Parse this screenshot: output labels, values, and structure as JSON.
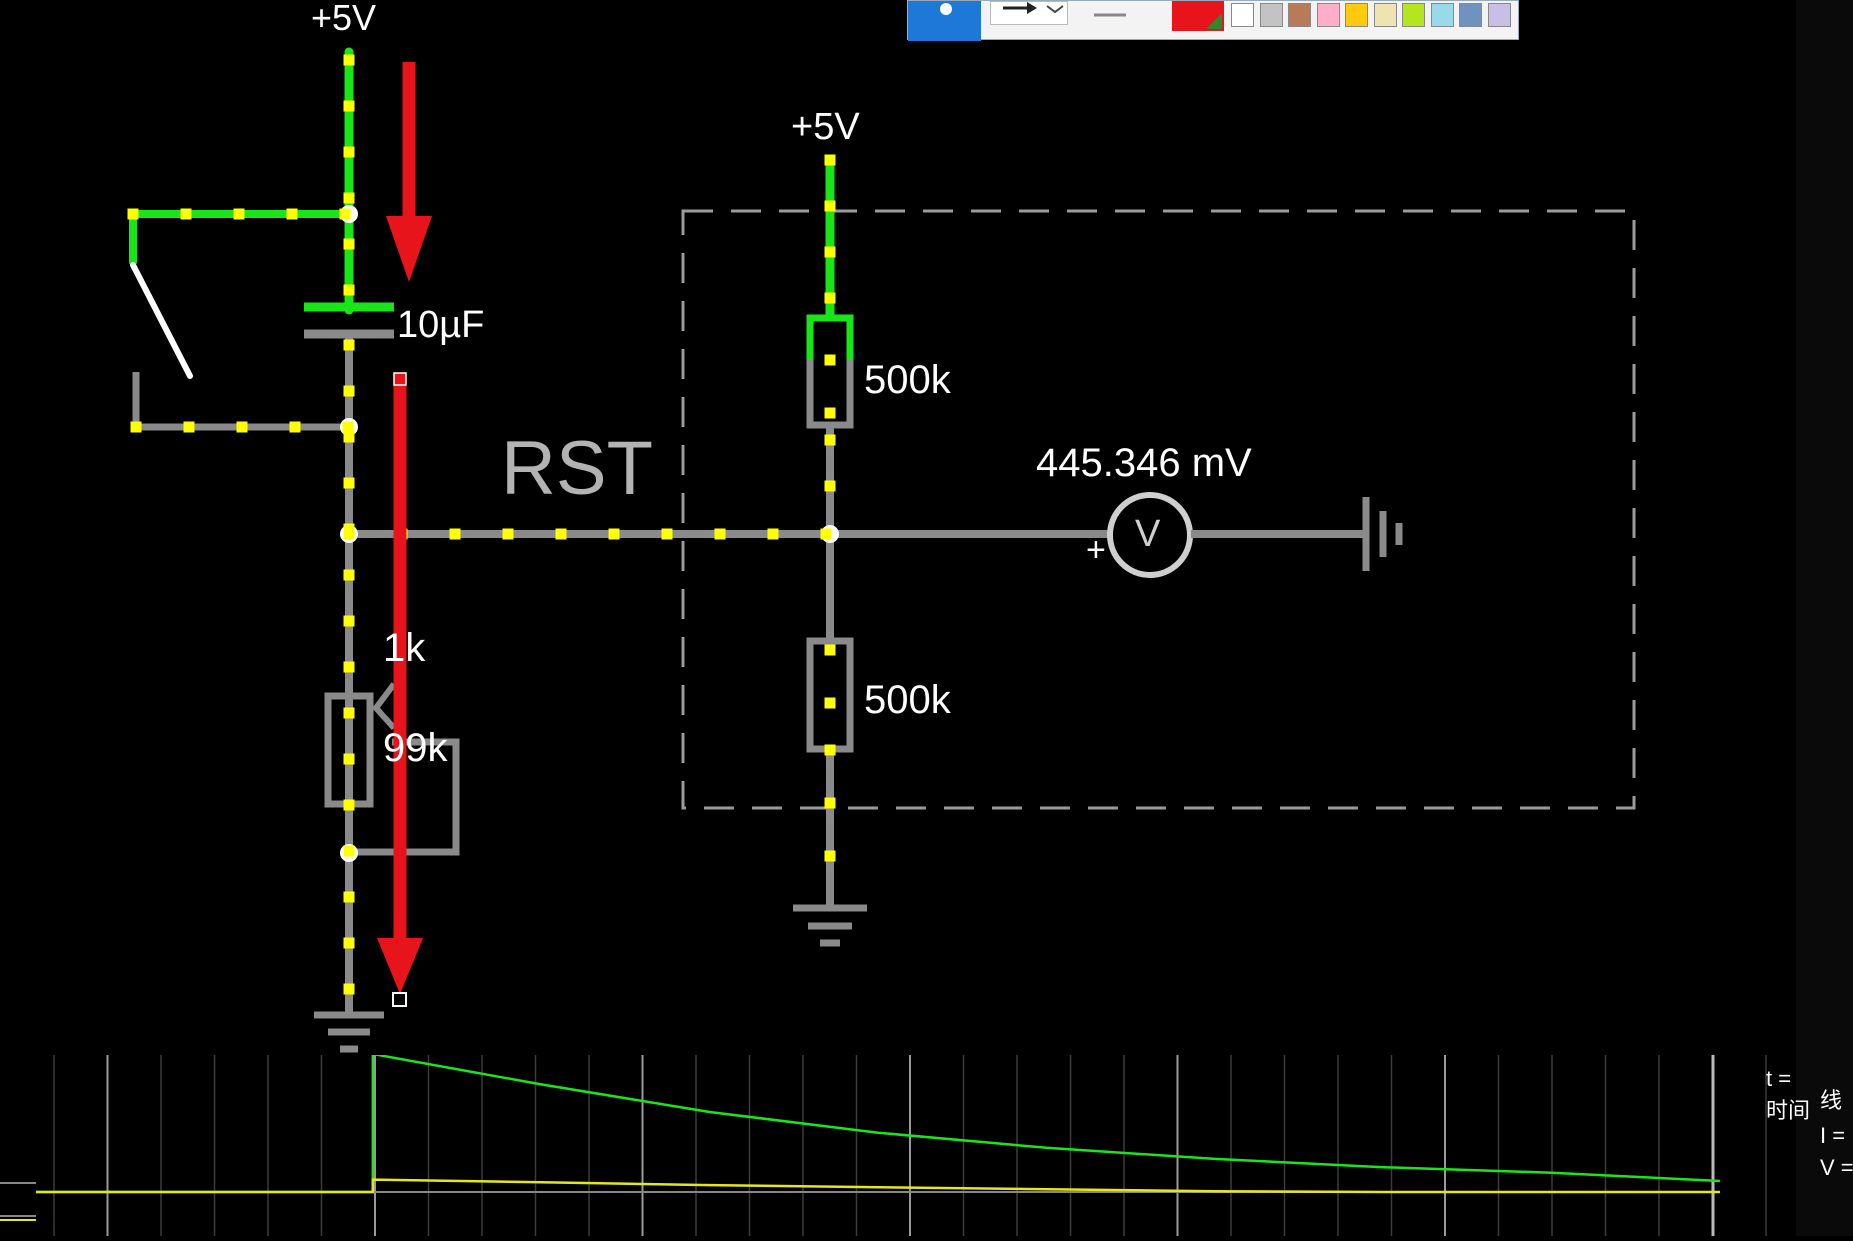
{
  "circuit": {
    "supply_left": "+5V",
    "supply_right": "+5V",
    "capacitor_label": "10µF",
    "node_label": "RST",
    "resistor_top": "500k",
    "resistor_bottom": "500k",
    "pot_top_label": "1k",
    "pot_bottom_label": "99k",
    "voltmeter_reading": "445.346 mV",
    "voltmeter_symbol": "V",
    "voltmeter_plus": "+",
    "colors": {
      "live_wire": "#19e619",
      "idle_wire": "#8a8a8a",
      "current_dot": "#ffff00",
      "annotation_arrow": "#e8141c",
      "subcircuit_box": "#9a9a9a"
    }
  },
  "toolbar": {
    "select_tool": "selection-dot-icon",
    "arrow_tool": "arrow-icon",
    "line_tool": "line-icon",
    "active_color": "#e8141c",
    "swatches": [
      "#ffffff",
      "#c3c3c3",
      "#b97a57",
      "#ffaec9",
      "#ffc90e",
      "#efe4b0",
      "#b5e61d",
      "#99d9ea",
      "#7092be",
      "#c8bfe7"
    ]
  },
  "scope": {
    "trace_colors": [
      "#19e619",
      "#e6e61e"
    ],
    "chart_data": {
      "type": "line",
      "series": [
        {
          "values": [
            0,
            0,
            1.0,
            0.78,
            0.58,
            0.43,
            0.32,
            0.24,
            0.18,
            0.14,
            0.08
          ]
        },
        {
          "values": [
            0,
            0,
            0.09,
            0.07,
            0.05,
            0.035,
            0.02,
            0.005,
            0.0,
            0.0,
            0.0
          ]
        }
      ]
    }
  },
  "side_panel": {
    "t_label": "t =",
    "time_label": "时间",
    "wire_label": "线",
    "current_label": "I =",
    "voltage_label": "V ="
  }
}
